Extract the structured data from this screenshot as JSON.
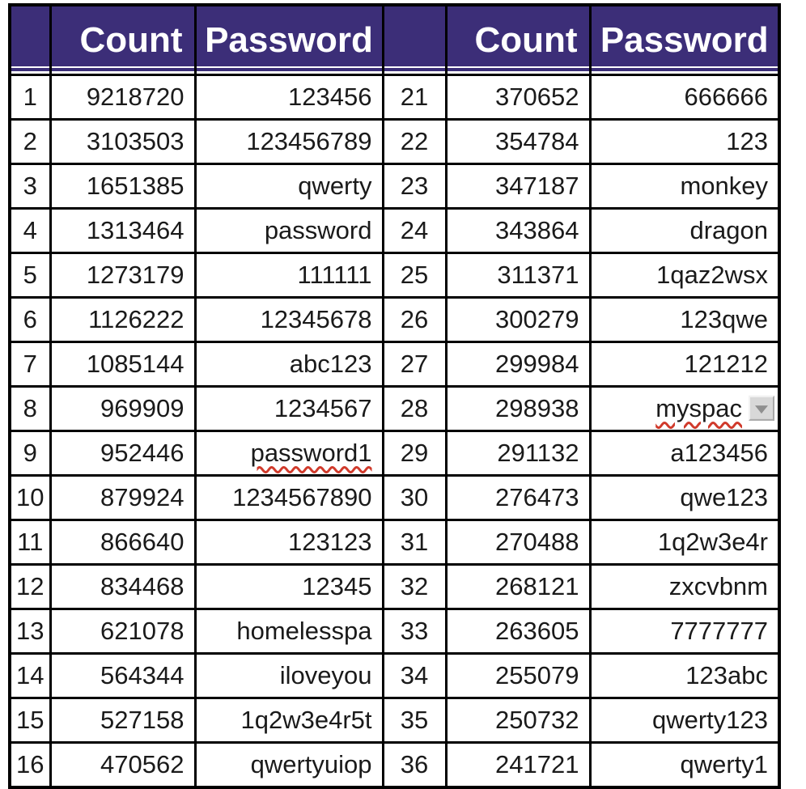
{
  "colors": {
    "header_bg": "#3c2e78",
    "header_text": "#ffffff",
    "border": "#000000",
    "squiggle": "#d03a2b",
    "dropdown_bg": "#d8d8d8",
    "dropdown_arrow": "#8f8f8f"
  },
  "header": {
    "count_label": "Count",
    "password_label": "Password"
  },
  "table": {
    "left_rows": [
      {
        "rank": "1",
        "count": "9218720",
        "password": "123456"
      },
      {
        "rank": "2",
        "count": "3103503",
        "password": "123456789"
      },
      {
        "rank": "3",
        "count": "1651385",
        "password": "qwerty"
      },
      {
        "rank": "4",
        "count": "1313464",
        "password": "password"
      },
      {
        "rank": "5",
        "count": "1273179",
        "password": "111111"
      },
      {
        "rank": "6",
        "count": "1126222",
        "password": "12345678"
      },
      {
        "rank": "7",
        "count": "1085144",
        "password": "abc123"
      },
      {
        "rank": "8",
        "count": "969909",
        "password": "1234567"
      },
      {
        "rank": "9",
        "count": "952446",
        "password": "password1",
        "misspelled": true
      },
      {
        "rank": "10",
        "count": "879924",
        "password": "1234567890"
      },
      {
        "rank": "11",
        "count": "866640",
        "password": "123123"
      },
      {
        "rank": "12",
        "count": "834468",
        "password": "12345"
      },
      {
        "rank": "13",
        "count": "621078",
        "password": "homelesspa"
      },
      {
        "rank": "14",
        "count": "564344",
        "password": "iloveyou"
      },
      {
        "rank": "15",
        "count": "527158",
        "password": "1q2w3e4r5t"
      },
      {
        "rank": "16",
        "count": "470562",
        "password": "qwertyuiop"
      }
    ],
    "right_rows": [
      {
        "rank": "21",
        "count": "370652",
        "password": "666666"
      },
      {
        "rank": "22",
        "count": "354784",
        "password": "123"
      },
      {
        "rank": "23",
        "count": "347187",
        "password": "monkey"
      },
      {
        "rank": "24",
        "count": "343864",
        "password": "dragon"
      },
      {
        "rank": "25",
        "count": "311371",
        "password": "1qaz2wsx"
      },
      {
        "rank": "26",
        "count": "300279",
        "password": "123qwe"
      },
      {
        "rank": "27",
        "count": "299984",
        "password": "121212"
      },
      {
        "rank": "28",
        "count": "298938",
        "password": "myspac",
        "misspelled": true,
        "dropdown": true
      },
      {
        "rank": "29",
        "count": "291132",
        "password": "a123456"
      },
      {
        "rank": "30",
        "count": "276473",
        "password": "qwe123"
      },
      {
        "rank": "31",
        "count": "270488",
        "password": "1q2w3e4r"
      },
      {
        "rank": "32",
        "count": "268121",
        "password": "zxcvbnm"
      },
      {
        "rank": "33",
        "count": "263605",
        "password": "7777777"
      },
      {
        "rank": "34",
        "count": "255079",
        "password": "123abc"
      },
      {
        "rank": "35",
        "count": "250732",
        "password": "qwerty123"
      },
      {
        "rank": "36",
        "count": "241721",
        "password": "qwerty1"
      }
    ]
  }
}
